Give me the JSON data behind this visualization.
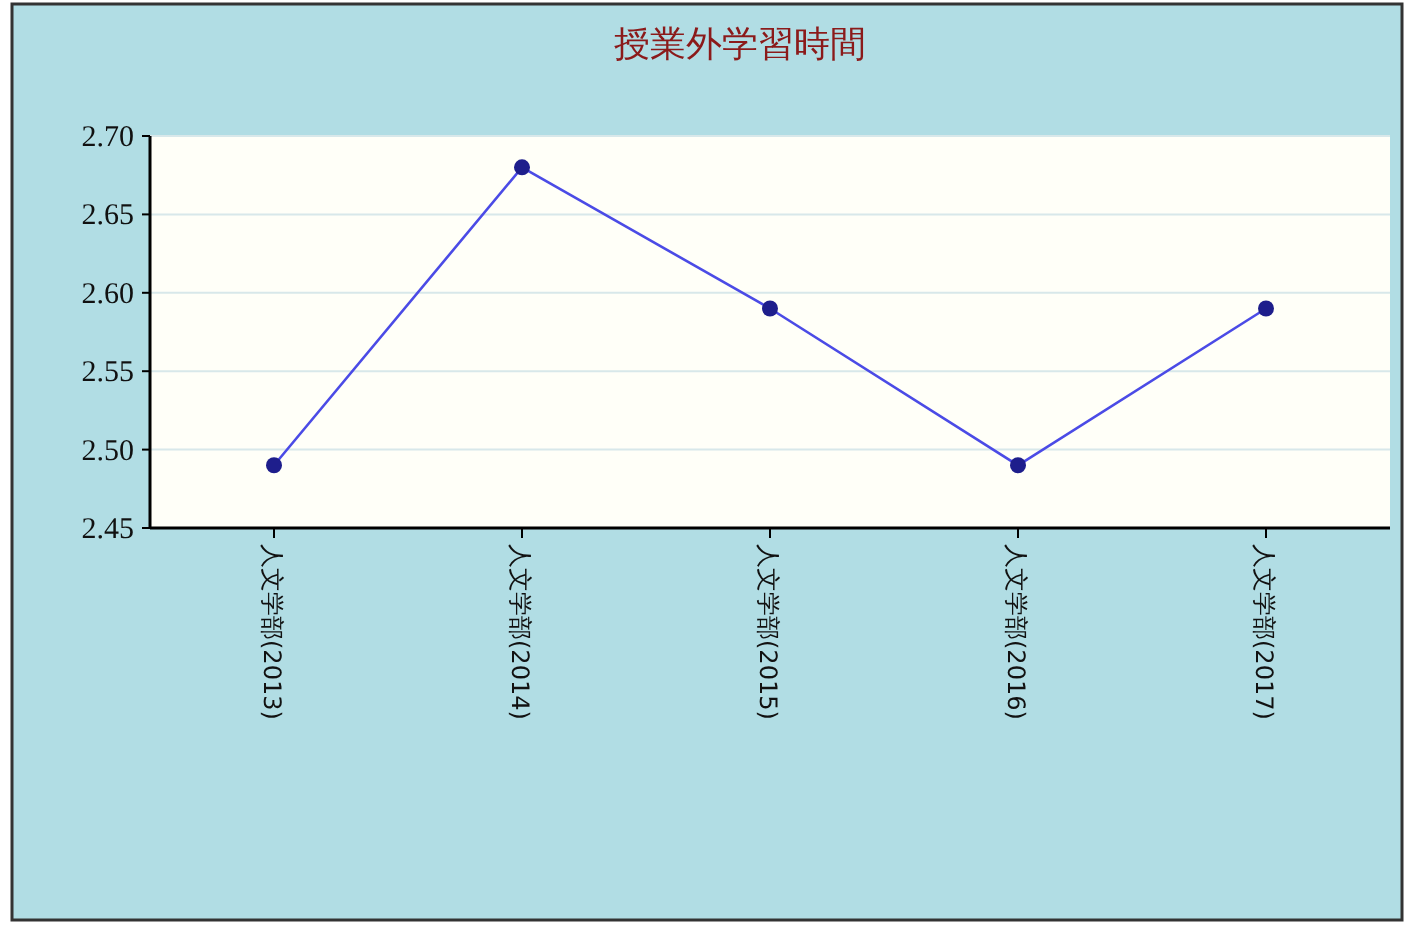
{
  "chart_data": {
    "type": "line",
    "title": "授業外学習時間",
    "categories": [
      "人文学部(2013)",
      "人文学部(2014)",
      "人文学部(2015)",
      "人文学部(2016)",
      "人文学部(2017)"
    ],
    "series": [
      {
        "color": "#4b4be6",
        "values": [
          2.49,
          2.68,
          2.59,
          2.49,
          2.59
        ]
      }
    ],
    "ylim": [
      2.45,
      2.7
    ],
    "yticks": [
      {
        "value": 2.45,
        "label": "2.45"
      },
      {
        "value": 2.5,
        "label": "2.50"
      },
      {
        "value": 2.55,
        "label": "2.55"
      },
      {
        "value": 2.6,
        "label": "2.60"
      },
      {
        "value": 2.65,
        "label": "2.65"
      },
      {
        "value": 2.7,
        "label": "2.70"
      }
    ],
    "grid": "y",
    "marker": "circle",
    "line_style": "solid"
  }
}
